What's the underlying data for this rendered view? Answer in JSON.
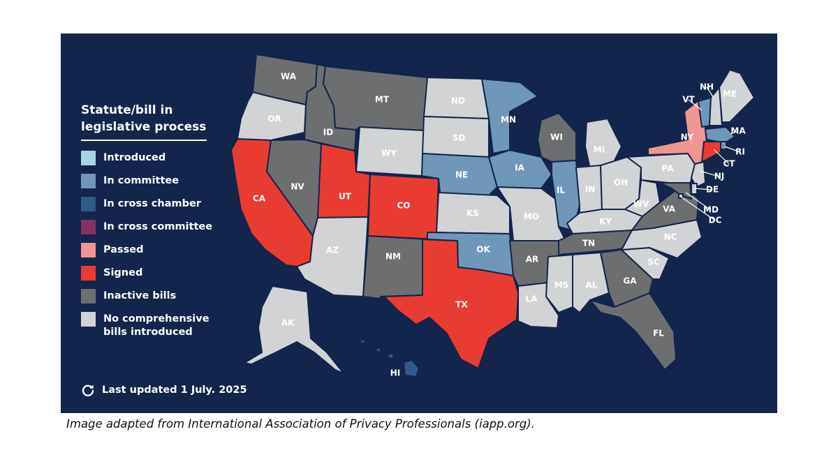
{
  "legend": {
    "title_line1": "Statute/bill in",
    "title_line2": "legislative process",
    "items": [
      {
        "label": "Introduced",
        "color": "#a9d3e4"
      },
      {
        "label": "In committee",
        "color": "#6f97b8"
      },
      {
        "label": "In cross chamber",
        "color": "#2f5a8a"
      },
      {
        "label": "In cross committee",
        "color": "#8a2f62"
      },
      {
        "label": "Passed",
        "color": "#f09592"
      },
      {
        "label": "Signed",
        "color": "#e83c33"
      },
      {
        "label": "Inactive bills",
        "color": "#6d6e70"
      },
      {
        "label": "No comprehensive bills introduced",
        "color": "#d2d3d5"
      }
    ]
  },
  "updated": {
    "text": "Last updated 1 July. 2025",
    "icon": "refresh-icon"
  },
  "caption": "Image adapted from International Association of Privacy Professionals (iapp.org).",
  "states": {
    "WA": "Inactive bills",
    "OR": "No comprehensive bills introduced",
    "CA": "Signed",
    "ID": "Inactive bills",
    "NV": "Inactive bills",
    "MT": "Inactive bills",
    "WY": "No comprehensive bills introduced",
    "UT": "Signed",
    "CO": "Signed",
    "AZ": "No comprehensive bills introduced",
    "NM": "Inactive bills",
    "ND": "No comprehensive bills introduced",
    "SD": "No comprehensive bills introduced",
    "NE": "In committee",
    "KS": "No comprehensive bills introduced",
    "OK": "In committee",
    "TX": "Signed",
    "MN": "In committee",
    "IA": "In committee",
    "MO": "No comprehensive bills introduced",
    "AR": "Inactive bills",
    "LA": "No comprehensive bills introduced",
    "WI": "Inactive bills",
    "IL": "In committee",
    "MS": "No comprehensive bills introduced",
    "MI": "No comprehensive bills introduced",
    "IN": "No comprehensive bills introduced",
    "OH": "No comprehensive bills introduced",
    "KY": "No comprehensive bills introduced",
    "TN": "Inactive bills",
    "AL": "No comprehensive bills introduced",
    "GA": "Inactive bills",
    "FL": "Inactive bills",
    "SC": "No comprehensive bills introduced",
    "NC": "No comprehensive bills introduced",
    "VA": "Inactive bills",
    "WV": "No comprehensive bills introduced",
    "PA": "No comprehensive bills introduced",
    "NY": "Passed",
    "VT": "In committee",
    "NH": "No comprehensive bills introduced",
    "ME": "No comprehensive bills introduced",
    "MA": "In committee",
    "RI": "In committee",
    "CT": "Signed",
    "NJ": "No comprehensive bills introduced",
    "DE": "No comprehensive bills introduced",
    "MD": "Inactive bills",
    "DC": "No comprehensive bills introduced",
    "AK": "No comprehensive bills introduced",
    "HI": "In cross chamber"
  }
}
